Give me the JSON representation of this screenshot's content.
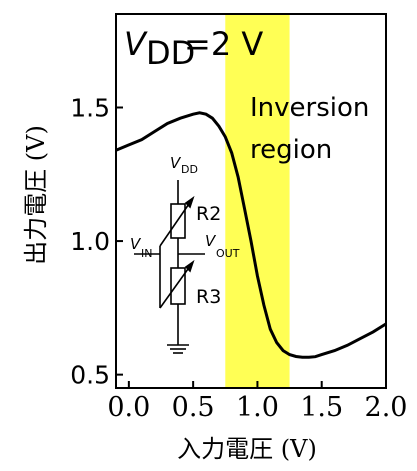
{
  "chart_data": {
    "type": "line",
    "xlabel": "入力電圧 (V)",
    "ylabel": "出力電圧 (V)",
    "xlim": [
      -0.1,
      2.0
    ],
    "ylim": [
      0.45,
      1.85
    ],
    "x_ticks": [
      "0.0",
      "0.5",
      "1.0",
      "1.5",
      "2.0"
    ],
    "y_ticks": [
      "0.5",
      "1.0",
      "1.5"
    ],
    "grid": false,
    "highlight_region": {
      "x": [
        0.75,
        1.25
      ],
      "color": "#ffff55"
    },
    "series": [
      {
        "color": "#000000",
        "x": [
          -0.1,
          0.0,
          0.1,
          0.2,
          0.3,
          0.4,
          0.5,
          0.55,
          0.6,
          0.65,
          0.7,
          0.75,
          0.8,
          0.85,
          0.9,
          0.95,
          1.0,
          1.05,
          1.1,
          1.15,
          1.2,
          1.25,
          1.3,
          1.35,
          1.4,
          1.45,
          1.5,
          1.6,
          1.7,
          1.8,
          1.9,
          2.0
        ],
        "y": [
          1.34,
          1.36,
          1.38,
          1.41,
          1.44,
          1.46,
          1.475,
          1.48,
          1.475,
          1.46,
          1.43,
          1.39,
          1.33,
          1.24,
          1.12,
          1.0,
          0.87,
          0.76,
          0.67,
          0.62,
          0.59,
          0.575,
          0.568,
          0.565,
          0.565,
          0.567,
          0.575,
          0.59,
          0.61,
          0.635,
          0.66,
          0.69
        ]
      }
    ],
    "annotations": {
      "vdd_label": "V",
      "vdd_sub": "DD",
      "vdd_value": "=2 V",
      "region_line1": "Inversion",
      "region_line2": "region"
    },
    "inset_circuit": {
      "vdd": "V",
      "vdd_sub": "DD",
      "vin": "V",
      "vin_sub": "IN",
      "vout": "V",
      "vout_sub": "OUT",
      "r2": "R2",
      "r3": "R3"
    }
  }
}
